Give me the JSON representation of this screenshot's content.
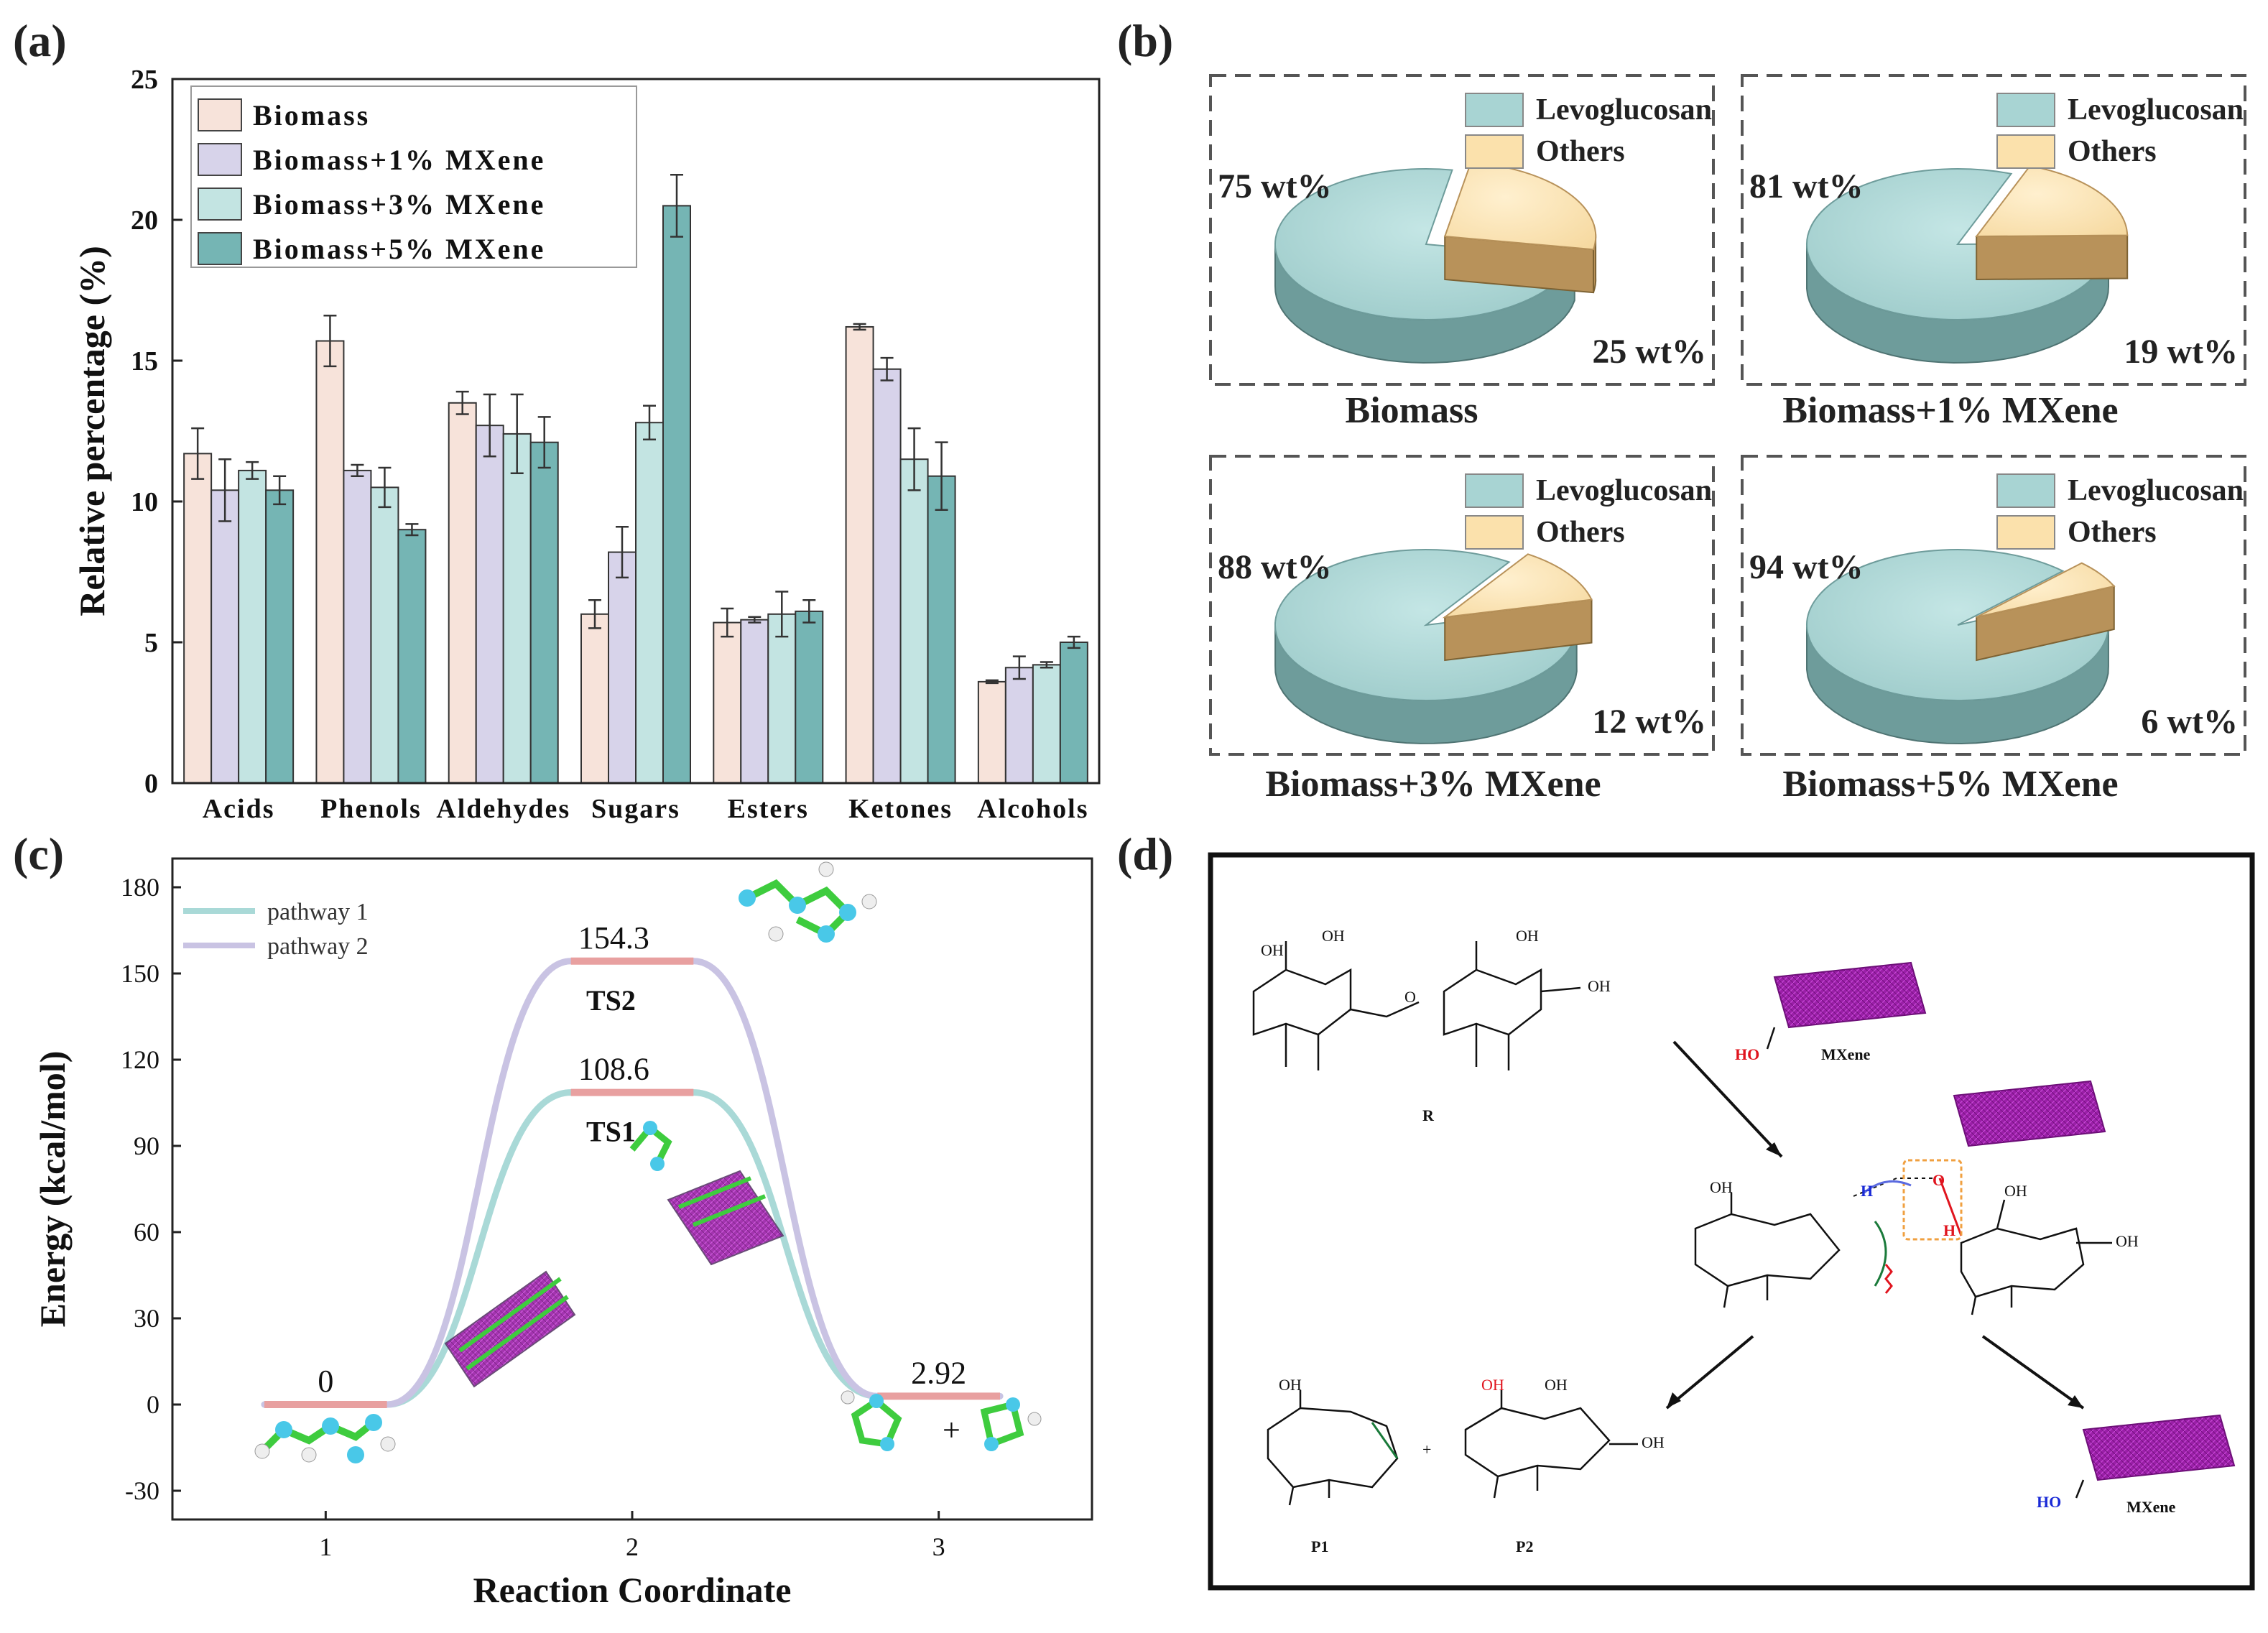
{
  "panels": {
    "a": "(a)",
    "b": "(b)",
    "c": "(c)",
    "d": "(d)"
  },
  "chart_data": [
    {
      "id": "a",
      "type": "bar",
      "ylabel": "Relative percentage (%)",
      "xlabel": "",
      "ylim": [
        0,
        25
      ],
      "yticks": [
        0,
        5,
        10,
        15,
        20,
        25
      ],
      "categories": [
        "Acids",
        "Phenols",
        "Aldehydes",
        "Sugars",
        "Esters",
        "Ketones",
        "Alcohols"
      ],
      "legend_position": "top-left",
      "series": [
        {
          "name": "Biomass",
          "color": "#f7e3da",
          "values": [
            11.7,
            15.7,
            13.5,
            6.0,
            5.7,
            16.2,
            3.6
          ],
          "errors": [
            0.9,
            0.9,
            0.4,
            0.5,
            0.5,
            0.1,
            0.05
          ]
        },
        {
          "name": "Biomass+1% MXene",
          "color": "#d7d3ea",
          "values": [
            10.4,
            11.1,
            12.7,
            8.2,
            5.8,
            14.7,
            4.1
          ],
          "errors": [
            1.1,
            0.2,
            1.1,
            0.9,
            0.1,
            0.4,
            0.4
          ]
        },
        {
          "name": "Biomass+3% MXene",
          "color": "#c3e4e2",
          "values": [
            11.1,
            10.5,
            12.4,
            12.8,
            6.0,
            11.5,
            4.2
          ],
          "errors": [
            0.3,
            0.7,
            1.4,
            0.6,
            0.8,
            1.1,
            0.1
          ]
        },
        {
          "name": "Biomass+5% MXene",
          "color": "#75b5b4",
          "values": [
            10.4,
            9.0,
            12.1,
            20.5,
            6.1,
            10.9,
            5.0
          ],
          "errors": [
            0.5,
            0.2,
            0.9,
            1.1,
            0.4,
            1.2,
            0.2
          ]
        }
      ]
    },
    {
      "id": "b",
      "type": "pie",
      "legend": [
        "Levoglucosan",
        "Others"
      ],
      "colors": {
        "levoglucosan": "#a8d4d3",
        "levoglucosan_side": "#6e9c9b",
        "others": "#fbe1ac",
        "others_side": "#b8925a"
      },
      "pies": [
        {
          "title": "Biomass",
          "levoglucosan": 75,
          "others": 25,
          "levo_label": "75 wt%",
          "others_label": "25 wt%"
        },
        {
          "title": "Biomass+1% MXene",
          "levoglucosan": 81,
          "others": 19,
          "levo_label": "81 wt%",
          "others_label": "19 wt%"
        },
        {
          "title": "Biomass+3% MXene",
          "levoglucosan": 88,
          "others": 12,
          "levo_label": "88 wt%",
          "others_label": "12 wt%"
        },
        {
          "title": "Biomass+5% MXene",
          "levoglucosan": 94,
          "others": 6,
          "levo_label": "94 wt%",
          "others_label": "6 wt%"
        }
      ]
    },
    {
      "id": "c",
      "type": "line",
      "ylabel": "Energy (kcal/mol)",
      "xlabel": "Reaction Coordinate",
      "ylim": [
        -40,
        190
      ],
      "xlim": [
        0.5,
        3.5
      ],
      "yticks": [
        -30,
        0,
        30,
        60,
        90,
        120,
        150,
        180
      ],
      "xticks": [
        1,
        2,
        3
      ],
      "legend_position": "top-left",
      "series": [
        {
          "name": "pathway 1",
          "color": "#a9d9d7",
          "x": [
            1,
            2,
            3
          ],
          "y": [
            0,
            108.6,
            2.92
          ]
        },
        {
          "name": "pathway 2",
          "color": "#c9c3e3",
          "x": [
            1,
            2,
            3
          ],
          "y": [
            0,
            154.3,
            2.92
          ]
        }
      ],
      "level_color": "#e8a0a0",
      "level_labels": [
        "0",
        "154.3",
        "108.6",
        "2.92"
      ],
      "ts_labels": [
        "TS2",
        "TS1"
      ],
      "plus": "+"
    }
  ],
  "scheme_d": {
    "labels": {
      "r": "R",
      "p1": "P1",
      "p2": "P2",
      "mxene": "MXene",
      "ho": "HO",
      "h": "H",
      "o": "O",
      "oh": "OH"
    },
    "colors": {
      "mxene": "#9b1fa8",
      "red": "#e0141e",
      "blue": "#1a2ad6",
      "green": "#1a7a3a",
      "orange": "#f0a040"
    }
  }
}
